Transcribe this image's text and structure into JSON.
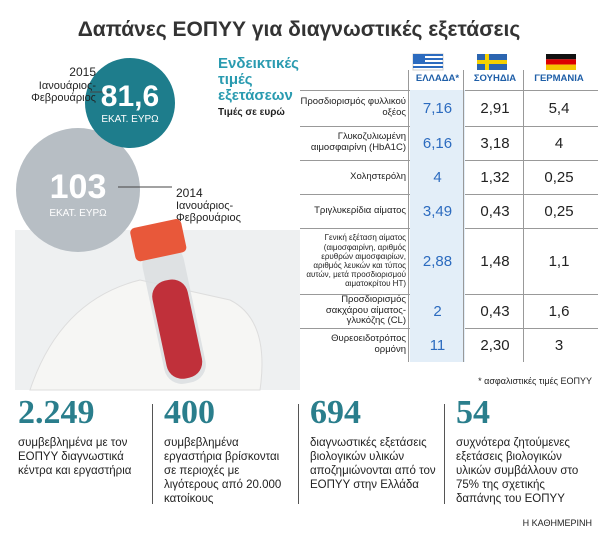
{
  "header": {
    "title": "Δαπάνες ΕΟΠΥΥ για διαγνωστικές εξετάσεις"
  },
  "circles": [
    {
      "year": "2015",
      "period": "Ιανουάριος-Φεβρουάριος",
      "value": "81,6",
      "unit": "ΕΚΑΤ. ΕΥΡΩ"
    },
    {
      "year": "2014",
      "period": "Ιανουάριος-Φεβρουάριος",
      "value": "103",
      "unit": "ΕΚΑΤ. ΕΥΡΩ"
    }
  ],
  "table": {
    "heading": "Ενδεικτικές τιμές εξετάσεων",
    "subheading": "Τιμές σε ευρώ",
    "columns": [
      "ΕΛΛΑΔΑ*",
      "ΣΟΥΗΔΙΑ",
      "ΓΕΡΜΑΝΙΑ"
    ],
    "rows": [
      [
        "Προσδιορισμός φυλλικού οξέος",
        "7,16",
        "2,91",
        "5,4"
      ],
      [
        "Γλυκοζυλιωμένη αιμοσφαιρίνη (HbA1C)",
        "6,16",
        "3,18",
        "4"
      ],
      [
        "Χοληστερόλη",
        "4",
        "1,32",
        "0,25"
      ],
      [
        "Τριγλυκερίδια αίματος",
        "3,49",
        "0,43",
        "0,25"
      ],
      [
        "Γενική εξέταση αίματος (αιμοσφαιρίνη, αριθμός ερυθρών αιμοσφαιρίων, αριθμός λευκών και τύπος αυτών, μετά προσδιορισμού αιματοκρίτου HT)",
        "2,88",
        "1,48",
        "1,1"
      ],
      [
        "Προσδιορισμός σακχάρου αίματος-γλυκόζης (CL)",
        "2",
        "0,43",
        "1,6"
      ],
      [
        "Θυρεοειδοτρόπος ορμόνη",
        "11",
        "2,30",
        "3"
      ]
    ],
    "footnote": "* ασφαλιστικές τιμές ΕΟΠΥΥ"
  },
  "stats": [
    {
      "number": "2.249",
      "text": "συμβεβλημένα με τον ΕΟΠΥΥ διαγνωστικά κέντρα και εργαστήρια"
    },
    {
      "number": "400",
      "text": "συμβεβλημένα εργαστήρια βρίσκονται σε περιοχές με λιγότερους από 20.000 κατοίκους"
    },
    {
      "number": "694",
      "text": "διαγνωστικές εξετάσεις βιολογικών υλικών αποζημιώνονται από τον ΕΟΠΥΥ στην Ελλάδα"
    },
    {
      "number": "54",
      "text": "συχνότερα ζητούμενες εξετάσεις βιολογικών υλικών συμβάλλουν στο 75% της σχετικής δαπάνης του ΕΟΠΥΥ"
    }
  ],
  "source": "Η ΚΑΘΗΜΕΡΙΝΗ"
}
